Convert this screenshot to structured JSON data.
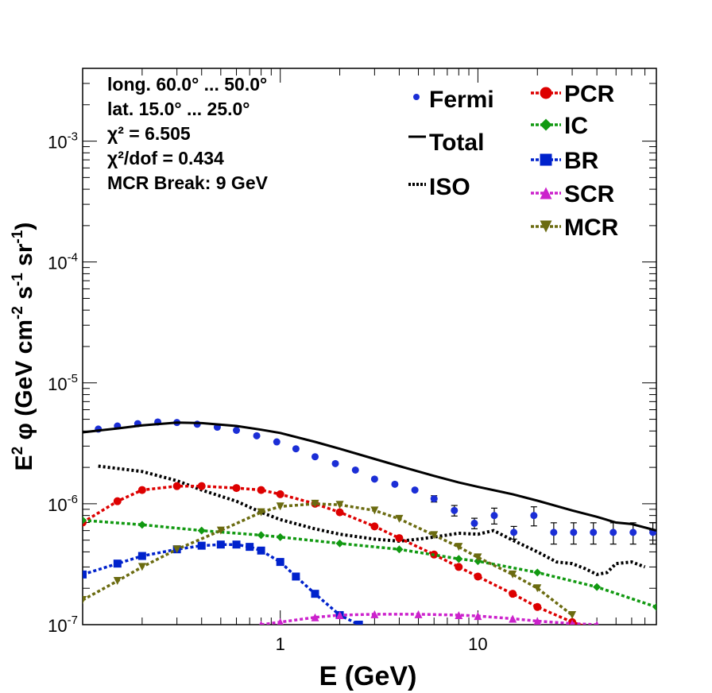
{
  "chart_data": {
    "type": "line",
    "xlabel": "E (GeV)",
    "ylabel_parts": [
      "E",
      "2",
      " φ (GeV cm",
      "-2",
      " s",
      "-1",
      " sr",
      "-1",
      ")"
    ],
    "x_scale": "log",
    "y_scale": "log",
    "xlim": [
      0.1,
      80
    ],
    "ylim": [
      1e-07,
      0.004
    ],
    "x_ticks": [
      {
        "value": 1,
        "label": "1"
      },
      {
        "value": 10,
        "label": "10"
      }
    ],
    "y_ticks": [
      {
        "value": 1e-07,
        "base": "10",
        "exp": "-7"
      },
      {
        "value": 1e-06,
        "base": "10",
        "exp": "-6"
      },
      {
        "value": 1e-05,
        "base": "10",
        "exp": "-5"
      },
      {
        "value": 0.0001,
        "base": "10",
        "exp": "-4"
      },
      {
        "value": 0.001,
        "base": "10",
        "exp": "-3"
      }
    ],
    "info_lines": [
      "long. 60.0° ... 50.0°",
      "lat. 15.0° ... 25.0°",
      "χ² = 6.505",
      "χ²/dof = 0.434",
      "MCR Break:  9 GeV"
    ],
    "legend_left": [
      "Fermi",
      "Total",
      "ISO"
    ],
    "legend_right": [
      "PCR",
      "IC",
      "BR",
      "SCR",
      "MCR"
    ],
    "colors": {
      "Fermi": "#1b2ed6",
      "Total": "#000000",
      "ISO": "#000000",
      "PCR": "#dd0000",
      "IC": "#119911",
      "BR": "#0022cc",
      "SCR": "#cc22cc",
      "MCR": "#6b6b10"
    },
    "series": [
      {
        "name": "Fermi",
        "kind": "points",
        "x": [
          0.12,
          0.15,
          0.19,
          0.24,
          0.3,
          0.38,
          0.48,
          0.6,
          0.76,
          0.96,
          1.2,
          1.5,
          1.9,
          2.4,
          3.0,
          3.8,
          4.8,
          6.0,
          7.6,
          9.6,
          12.1,
          15.2,
          19.2,
          24.2,
          30.5,
          38.4,
          48.4,
          61,
          76.8
        ],
        "y": [
          4.15e-06,
          4.4e-06,
          4.6e-06,
          4.75e-06,
          4.7e-06,
          4.55e-06,
          4.3e-06,
          4.05e-06,
          3.65e-06,
          3.25e-06,
          2.85e-06,
          2.45e-06,
          2.15e-06,
          1.9e-06,
          1.6e-06,
          1.45e-06,
          1.3e-06,
          1.1e-06,
          8.8e-07,
          6.9e-07,
          8e-07,
          5.8e-07,
          8e-07,
          5.8e-07,
          5.8e-07,
          5.8e-07,
          5.8e-07,
          5.8e-07,
          5.8e-07
        ],
        "err": [
          0,
          0,
          0,
          0,
          0,
          0,
          0,
          0,
          0,
          0,
          0,
          0,
          0,
          0,
          0,
          0,
          0,
          0.06,
          0.1,
          0.1,
          0.15,
          0.12,
          0.18,
          0.2,
          0.2,
          0.2,
          0.2,
          0.2,
          0.2
        ]
      },
      {
        "name": "Total",
        "kind": "line",
        "x": [
          0.1,
          0.15,
          0.2,
          0.3,
          0.4,
          0.6,
          0.8,
          1.0,
          1.5,
          2,
          3,
          4,
          6,
          8,
          10,
          15,
          20,
          30,
          40,
          50,
          60,
          80
        ],
        "y": [
          3.9e-06,
          4.2e-06,
          4.45e-06,
          4.7e-06,
          4.65e-06,
          4.4e-06,
          4.1e-06,
          3.85e-06,
          3.25e-06,
          2.85e-06,
          2.35e-06,
          2.05e-06,
          1.7e-06,
          1.5e-06,
          1.38e-06,
          1.2e-06,
          1.06e-06,
          8.8e-07,
          7.8e-07,
          7e-07,
          6.8e-07,
          6e-07
        ]
      },
      {
        "name": "ISO",
        "kind": "dashed",
        "x": [
          0.12,
          0.2,
          0.3,
          0.4,
          0.6,
          0.8,
          1.0,
          1.5,
          2,
          3,
          4,
          5,
          6,
          8,
          10,
          12,
          15,
          20,
          25,
          30,
          35,
          40,
          45,
          50,
          60,
          70
        ],
        "y": [
          2.05e-06,
          1.85e-06,
          1.55e-06,
          1.3e-06,
          1.05e-06,
          8.5e-07,
          7.4e-07,
          6.2e-07,
          5.6e-07,
          5.1e-07,
          4.9e-07,
          5.1e-07,
          5.3e-07,
          5.7e-07,
          5.6e-07,
          6e-07,
          5e-07,
          4e-07,
          3.3e-07,
          3.2e-07,
          2.9e-07,
          2.6e-07,
          2.7e-07,
          3.2e-07,
          3.3e-07,
          3e-07
        ]
      },
      {
        "name": "PCR",
        "kind": "markers",
        "x": [
          0.1,
          0.15,
          0.2,
          0.3,
          0.4,
          0.6,
          0.8,
          1.0,
          1.5,
          2,
          3,
          4,
          6,
          8,
          10,
          15,
          20,
          30,
          40
        ],
        "y": [
          7e-07,
          1.05e-06,
          1.3e-06,
          1.4e-06,
          1.4e-06,
          1.35e-06,
          1.3e-06,
          1.2e-06,
          1e-06,
          8.5e-07,
          6.5e-07,
          5.2e-07,
          3.8e-07,
          3e-07,
          2.5e-07,
          1.8e-07,
          1.4e-07,
          1.05e-07,
          9e-08
        ]
      },
      {
        "name": "IC",
        "kind": "markers",
        "x": [
          0.1,
          0.2,
          0.4,
          0.8,
          1.0,
          2,
          4,
          8,
          10,
          20,
          40,
          80
        ],
        "y": [
          7.3e-07,
          6.7e-07,
          6e-07,
          5.5e-07,
          5.3e-07,
          4.7e-07,
          4.2e-07,
          3.5e-07,
          3.35e-07,
          2.7e-07,
          2.05e-07,
          1.4e-07
        ]
      },
      {
        "name": "BR",
        "kind": "markers",
        "x": [
          0.1,
          0.15,
          0.2,
          0.3,
          0.4,
          0.5,
          0.6,
          0.7,
          0.8,
          1.0,
          1.2,
          1.5,
          2.0,
          2.5,
          3.0
        ],
        "y": [
          2.6e-07,
          3.2e-07,
          3.7e-07,
          4.2e-07,
          4.5e-07,
          4.6e-07,
          4.6e-07,
          4.4e-07,
          4.1e-07,
          3.3e-07,
          2.5e-07,
          1.8e-07,
          1.2e-07,
          1e-07,
          9e-08
        ]
      },
      {
        "name": "SCR",
        "kind": "markers",
        "x": [
          0.8,
          1.0,
          1.5,
          2,
          3,
          5,
          8,
          10,
          15,
          20,
          30,
          40
        ],
        "y": [
          1e-07,
          1.05e-07,
          1.15e-07,
          1.2e-07,
          1.22e-07,
          1.22e-07,
          1.2e-07,
          1.18e-07,
          1.12e-07,
          1.07e-07,
          1.02e-07,
          1e-07
        ]
      },
      {
        "name": "MCR",
        "kind": "markers",
        "x": [
          0.1,
          0.15,
          0.2,
          0.3,
          0.5,
          0.8,
          1.0,
          1.5,
          2,
          3,
          4,
          6,
          8,
          10,
          15,
          20,
          30
        ],
        "y": [
          1.6e-07,
          2.3e-07,
          3e-07,
          4.2e-07,
          6e-07,
          8.5e-07,
          9.5e-07,
          1e-06,
          9.8e-07,
          8.8e-07,
          7.5e-07,
          5.5e-07,
          4.4e-07,
          3.6e-07,
          2.6e-07,
          2e-07,
          1.2e-07
        ]
      }
    ]
  }
}
